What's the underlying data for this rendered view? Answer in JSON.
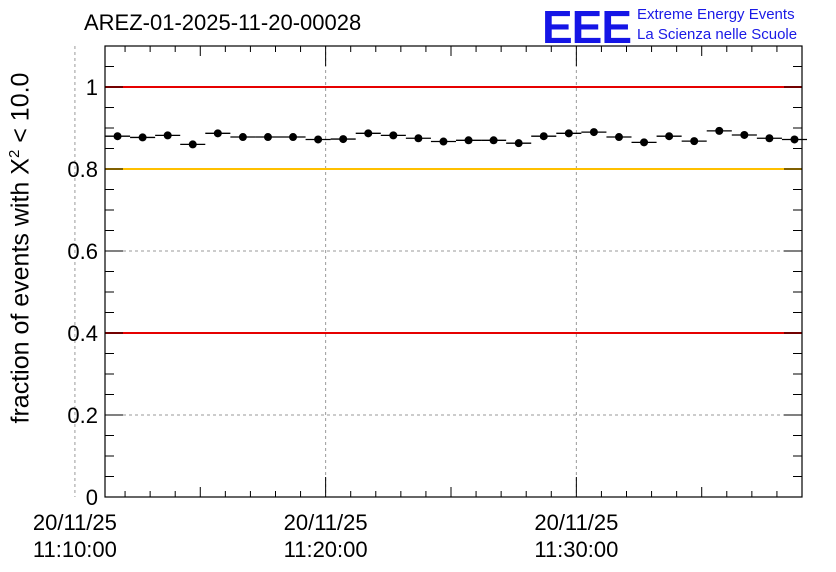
{
  "chart_data": {
    "type": "scatter",
    "title": "AREZ-01-2025-11-20-00028",
    "ylabel_prefix": "fraction of events with ",
    "ylabel_symbol": "X",
    "ylabel_exponent": "2",
    "ylabel_suffix": " < 10.0",
    "ylim": [
      0,
      1.1
    ],
    "yticks": [
      "0",
      "0.2",
      "0.4",
      "0.6",
      "0.8",
      "1"
    ],
    "ytick_values": [
      0,
      0.2,
      0.4,
      0.6,
      0.8,
      1.0
    ],
    "xlim_minutes": [
      11.2,
      39.0
    ],
    "xticks": [
      {
        "date": "20/11/25",
        "time": "11:10:00",
        "minute": 10
      },
      {
        "date": "20/11/25",
        "time": "11:20:00",
        "minute": 20
      },
      {
        "date": "20/11/25",
        "time": "11:30:00",
        "minute": 30
      }
    ],
    "grid": true,
    "x_minutes": [
      11.7,
      12.7,
      13.7,
      14.7,
      15.7,
      16.7,
      17.7,
      18.7,
      19.7,
      20.7,
      21.7,
      22.7,
      23.7,
      24.7,
      25.7,
      26.7,
      27.7,
      28.7,
      29.7,
      30.7,
      31.7,
      32.7,
      33.7,
      34.7,
      35.7,
      36.7,
      37.7,
      38.7
    ],
    "bin_half_width_minutes": 0.5,
    "values": [
      0.88,
      0.877,
      0.882,
      0.86,
      0.887,
      0.878,
      0.878,
      0.878,
      0.872,
      0.873,
      0.887,
      0.882,
      0.875,
      0.867,
      0.87,
      0.87,
      0.863,
      0.88,
      0.887,
      0.89,
      0.878,
      0.865,
      0.88,
      0.868,
      0.893,
      0.883,
      0.875,
      0.872
    ],
    "reference_lines": [
      {
        "value": 1.0,
        "color": "#e60000"
      },
      {
        "value": 0.8,
        "color": "#ffc000"
      },
      {
        "value": 0.4,
        "color": "#e60000"
      }
    ]
  },
  "logo": {
    "mark": "EEE",
    "line1": "Extreme Energy Events",
    "line2": "La Scienza nelle Scuole"
  }
}
